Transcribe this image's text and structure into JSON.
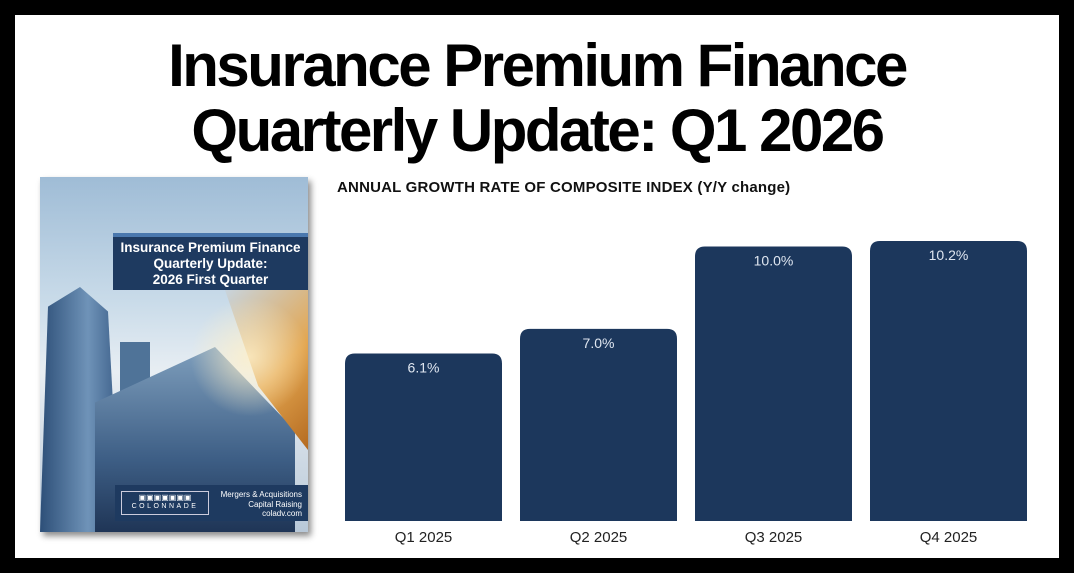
{
  "header": {
    "title_line1": "Insurance Premium Finance",
    "title_line2": "Quarterly Update: Q1 2026"
  },
  "cover": {
    "banner_line1": "Insurance Premium Finance",
    "banner_line2": "Quarterly Update:",
    "banner_line3": "2026 First Quarter",
    "logo_text": "COLONNADE",
    "footer_line1": "Mergers & Acquisitions",
    "footer_line2": "Capital Raising",
    "footer_line3": "coladv.com"
  },
  "chart_data": {
    "type": "bar",
    "title": "ANNUAL GROWTH RATE OF COMPOSITE INDEX (Y/Y change)",
    "categories": [
      "Q1 2025",
      "Q2 2025",
      "Q3 2025",
      "Q4 2025"
    ],
    "values": [
      6.1,
      7.0,
      10.0,
      10.2
    ],
    "data_labels": [
      "6.1%",
      "7.0%",
      "10.0%",
      "10.2%"
    ],
    "xlabel": "",
    "ylabel": "",
    "ylim": [
      0,
      10.2
    ],
    "grid": false,
    "bar_color": "#1c375c"
  }
}
